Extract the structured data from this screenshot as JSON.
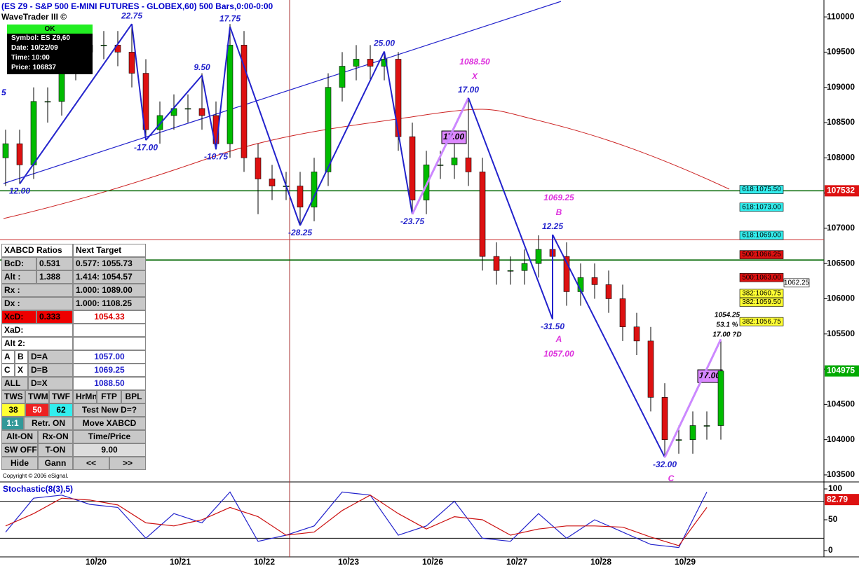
{
  "window": {
    "title": "(ES Z9 - S&P 500 E-MINI FUTURES - GLOBEX,60) 500 Bars,0:00-0:00",
    "brand": "WaveTrader III ©"
  },
  "info_box": {
    "status": "OK",
    "lines": [
      "Symbol: ES Z9,60",
      "Date: 10/22/09",
      "Time: 10:00",
      "Price: 106837"
    ]
  },
  "chart_data": {
    "type": "candlestick",
    "date_labels": [
      "10/20",
      "10/21",
      "10/22",
      "10/23",
      "10/26",
      "10/27",
      "10/28",
      "10/29"
    ],
    "open": [
      108000,
      108200,
      107900,
      108800,
      108800,
      109300,
      109500,
      109600,
      109600,
      109500,
      109200,
      108400,
      108600,
      108700,
      108700,
      108600,
      108200,
      109600,
      108000,
      107700,
      107600,
      107600,
      107300,
      107800,
      109000,
      109300,
      109400,
      109300,
      109400,
      108300,
      107400,
      107900,
      107900,
      108000,
      107800,
      106600,
      106400,
      106400,
      106500,
      106700,
      106600,
      106100,
      106300,
      106200,
      106000,
      105600,
      105400,
      104600,
      104000,
      104000,
      104200,
      104200
    ],
    "high": [
      108400,
      108400,
      109000,
      109000,
      109500,
      109700,
      109800,
      109800,
      109800,
      109900,
      109400,
      108800,
      108900,
      108900,
      109200,
      108800,
      109900,
      109800,
      108200,
      107900,
      107800,
      107800,
      108000,
      109200,
      109500,
      109600,
      109600,
      109500,
      109500,
      108500,
      108100,
      108100,
      108200,
      108850,
      108000,
      106800,
      106600,
      106700,
      106900,
      106900,
      106800,
      106500,
      106500,
      106400,
      106200,
      105800,
      105600,
      104800,
      104200,
      104400,
      104400,
      105400
    ],
    "low": [
      107600,
      107630,
      107700,
      108500,
      108600,
      109100,
      109300,
      109400,
      109300,
      109000,
      108250,
      108200,
      108400,
      108500,
      108400,
      108120,
      108000,
      107800,
      107200,
      107400,
      107400,
      107040,
      107100,
      107600,
      108800,
      109100,
      109100,
      109100,
      108100,
      107200,
      107200,
      107700,
      107700,
      107600,
      106400,
      106200,
      106200,
      106200,
      106300,
      105710,
      105900,
      105900,
      106000,
      105800,
      105400,
      105200,
      104400,
      103750,
      103800,
      103800,
      104000,
      104000
    ],
    "close": [
      108200,
      107900,
      108800,
      108800,
      109300,
      109500,
      109600,
      109600,
      109500,
      109200,
      108400,
      108600,
      108700,
      108700,
      108600,
      108200,
      109600,
      108000,
      107700,
      107600,
      107600,
      107300,
      107800,
      109000,
      109300,
      109400,
      109300,
      109400,
      108300,
      107400,
      107900,
      107900,
      108000,
      107800,
      106600,
      106400,
      106400,
      106500,
      106700,
      106600,
      106100,
      106300,
      106200,
      106000,
      105600,
      105400,
      104600,
      104000,
      104000,
      104200,
      104200,
      104975
    ],
    "ylim": [
      103400,
      110220
    ],
    "yticks": [
      110000,
      109500,
      109000,
      108500,
      108000,
      107500,
      107000,
      106500,
      106000,
      105500,
      105000,
      104500,
      104000,
      103500
    ],
    "edge_label": "5",
    "zigzag": {
      "bars": [
        1,
        9,
        10,
        14,
        15,
        16,
        21,
        27,
        29,
        33,
        39,
        39,
        47
      ],
      "prices": [
        107630,
        109900,
        108250,
        109170,
        108120,
        109860,
        107040,
        109510,
        107200,
        108850,
        105710,
        106910,
        103750
      ],
      "labels": [
        "12.00",
        "22.75",
        "-17.00",
        "9.50",
        "-10.75",
        "17.75",
        "-28.25",
        "25.00",
        "-23.75",
        "17.00",
        "-31.50",
        "12.25",
        "-32.00"
      ]
    },
    "pattern_labels": [
      "1088.50",
      "X",
      "1069.25",
      "B",
      "A",
      "1057.00",
      "C"
    ],
    "projection": {
      "price": {
        "value": 105425,
        "label": "1054.25"
      },
      "ratio": "53.1 %",
      "note": "17.00 ?D"
    },
    "tags": [
      "17.00",
      "17.00"
    ],
    "levels": [
      {
        "value": 107532,
        "color": "#060"
      },
      {
        "value": 106550,
        "color": "#060"
      },
      {
        "value": 106840,
        "color": "#c33"
      }
    ],
    "last_price": 104975,
    "targets": [
      {
        "label": "618:1075.50",
        "price": 107550,
        "color": "#3ee"
      },
      {
        "label": "618:1073.00",
        "price": 107300,
        "color": "#3ee"
      },
      {
        "label": "618:1069.00",
        "price": 106900,
        "color": "#3ee"
      },
      {
        "label": "500:1066.25",
        "price": 106625,
        "color": "#d11"
      },
      {
        "label": "500:1063.00",
        "price": 106300,
        "color": "#d11"
      },
      {
        "label": "382:1060.75",
        "price": 106075,
        "color": "#ff3"
      },
      {
        "label": "382:1059.50",
        "price": 105950,
        "color": "#ff3"
      },
      {
        "label": "382:1056.75",
        "price": 105675,
        "color": "#ff3"
      },
      {
        "label": "1062.25",
        "price": 106225,
        "color": "#fff"
      }
    ],
    "stochastic": {
      "title": "Stochastic(8(3),5)",
      "ylim": [
        0,
        100
      ],
      "yticks": [
        100,
        50,
        0
      ],
      "bands": [
        80,
        20
      ],
      "k": [
        30,
        85,
        90,
        75,
        70,
        20,
        60,
        45,
        95,
        15,
        25,
        40,
        95,
        90,
        25,
        40,
        80,
        20,
        15,
        60,
        20,
        50,
        30,
        10,
        5,
        95
      ],
      "d": [
        40,
        60,
        85,
        82,
        74,
        45,
        40,
        50,
        70,
        55,
        25,
        30,
        65,
        90,
        60,
        35,
        55,
        50,
        25,
        35,
        40,
        40,
        38,
        22,
        8,
        70
      ],
      "last": 82.79
    }
  },
  "panel": {
    "rows": [
      [
        "XABCD Ratios",
        "Next Target"
      ],
      [
        "BcD:",
        "0.531",
        "0.577: 1055.73"
      ],
      [
        "Alt  :",
        "1.388",
        "1.414: 1054.57"
      ],
      [
        "Rx   :",
        "1.000: 1089.00"
      ],
      [
        "Dx   :",
        "1.000: 1108.25"
      ],
      [
        "XcD:",
        "0.333",
        "1054.33"
      ],
      [
        "XaD:",
        ""
      ],
      [
        "Alt 2:",
        ""
      ],
      [
        "A",
        "B",
        "D=A",
        "1057.00"
      ],
      [
        "C",
        "X",
        "D=B",
        "1069.25"
      ],
      [
        "ALL",
        "D=X",
        "1088.50"
      ],
      [
        "TWS",
        "TWM",
        "TWF",
        "HrMn",
        "FTP",
        "BPL"
      ],
      [
        "38",
        "50",
        "62",
        "Test New D=?"
      ],
      [
        "1:1",
        "Retr. ON",
        "Move XABCD"
      ],
      [
        "Alt-ON",
        "Rx-ON",
        "Time/Price"
      ],
      [
        "SW OFF",
        "T-ON",
        "9.00"
      ],
      [
        "Hide",
        "Gann",
        "<<",
        ">>"
      ]
    ],
    "copyright": "Copyright © 2006 eSignal."
  }
}
